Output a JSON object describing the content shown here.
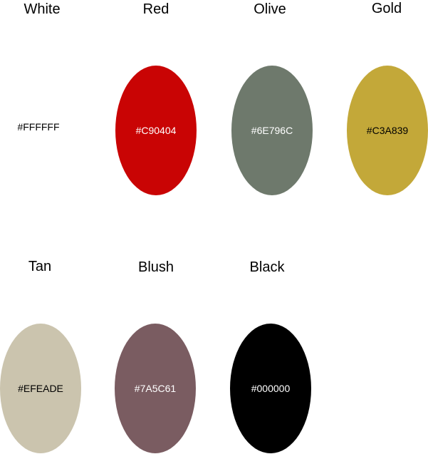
{
  "swatches": [
    {
      "name": "White",
      "hex": "#FFFFFF",
      "fill": "#FFFFFF",
      "text_color": "#000000"
    },
    {
      "name": "Red",
      "hex": "#C90404",
      "fill": "#C90404",
      "text_color": "#FFFFFF"
    },
    {
      "name": "Olive",
      "hex": "#6E796C",
      "fill": "#6E796C",
      "text_color": "#FFFFFF"
    },
    {
      "name": "Gold",
      "hex": "#C3A839",
      "fill": "#C3A839",
      "text_color": "#000000"
    },
    {
      "name": "Tan",
      "hex": "#EFEADE",
      "fill": "#CBC4AE",
      "text_color": "#000000"
    },
    {
      "name": "Blush",
      "hex": "#7A5C61",
      "fill": "#7A5C61",
      "text_color": "#FFFFFF"
    },
    {
      "name": "Black",
      "hex": "#000000",
      "fill": "#000000",
      "text_color": "#FFFFFF"
    }
  ]
}
